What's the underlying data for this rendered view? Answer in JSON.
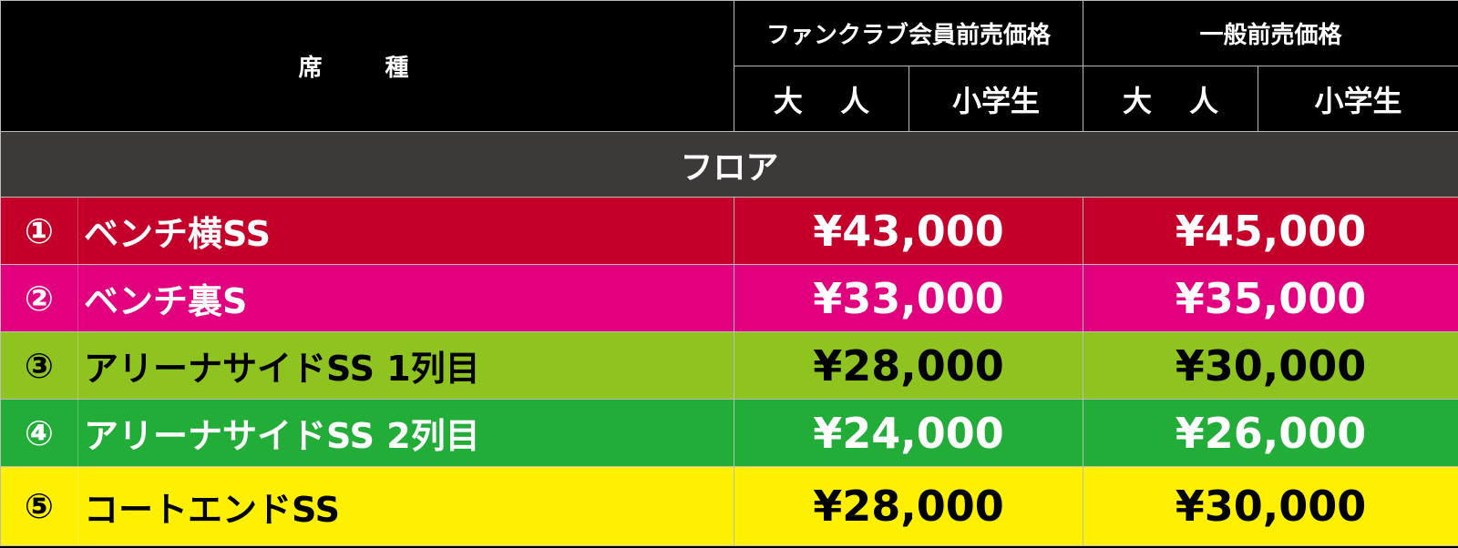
{
  "header": {
    "seat_type": "席 種",
    "fanclub_presale": "ファンクラブ会員前売価格",
    "general_presale": "一般前売価格",
    "adult": "大 人",
    "child": "小学生"
  },
  "section": "フロア",
  "rows": [
    {
      "num": "①",
      "name": "ベンチ横SS",
      "fanclub": "¥43,000",
      "general": "¥45,000",
      "bg": "#c4002a",
      "fg": "#ffffff"
    },
    {
      "num": "②",
      "name": "ベンチ裏S",
      "fanclub": "¥33,000",
      "general": "¥35,000",
      "bg": "#e2007f",
      "fg": "#ffffff"
    },
    {
      "num": "③",
      "name": "アリーナサイドSS 1列目",
      "fanclub": "¥28,000",
      "general": "¥30,000",
      "bg": "#8fc31f",
      "fg": "#000000"
    },
    {
      "num": "④",
      "name": "アリーナサイドSS 2列目",
      "fanclub": "¥24,000",
      "general": "¥26,000",
      "bg": "#22ac38",
      "fg": "#ffffff"
    },
    {
      "num": "⑤",
      "name": "コートエンドSS",
      "fanclub": "¥28,000",
      "general": "¥30,000",
      "bg": "#fff000",
      "fg": "#000000"
    }
  ]
}
